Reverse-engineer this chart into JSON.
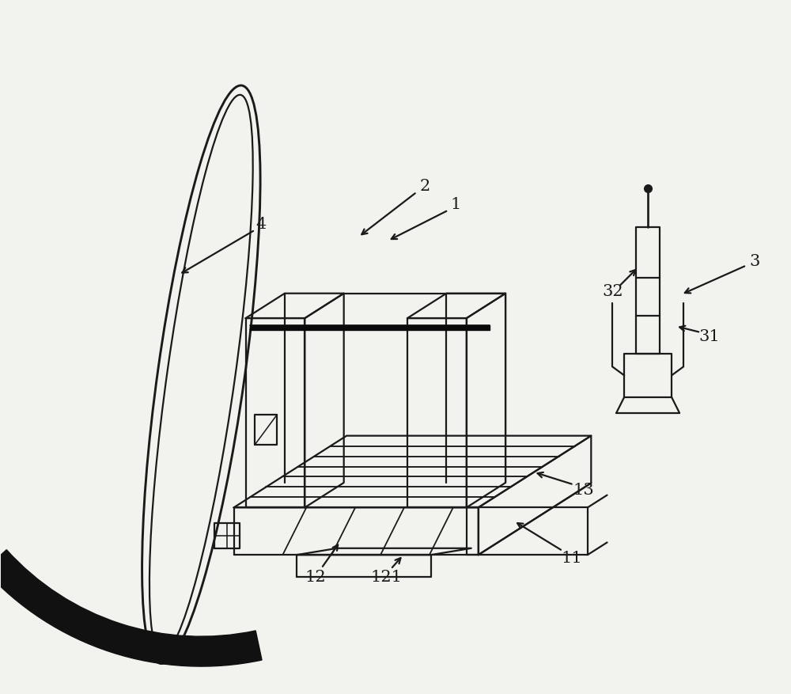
{
  "bg_color": "#f2f2ee",
  "line_color": "#1a1a1a",
  "lw": 1.6,
  "fig_width": 10.0,
  "fig_height": 8.78,
  "label_fontsize": 15
}
